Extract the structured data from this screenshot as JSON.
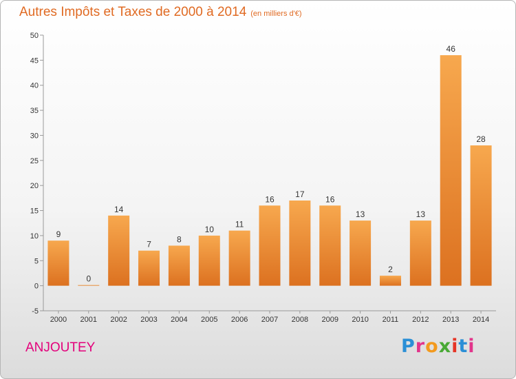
{
  "header": {
    "title": "Autres Impôts et Taxes de 2000 à 2014",
    "unit": "(en milliers d'€)"
  },
  "footer": {
    "commune": "ANJOUTEY",
    "logo_letters": [
      "P",
      "r",
      "o",
      "x",
      "i",
      "t",
      "i"
    ],
    "logo_colors": [
      "#2a8fd6",
      "#e2358b",
      "#f39a1e",
      "#49a935",
      "#e63526",
      "#2a8fd6",
      "#e2358b"
    ]
  },
  "colors": {
    "title": "#e06a22",
    "commune": "#e3007b",
    "bar_top": "#f7a84e",
    "bar_bottom": "#dc7120"
  },
  "chart_data": {
    "type": "bar",
    "categories": [
      "2000",
      "2001",
      "2002",
      "2003",
      "2004",
      "2005",
      "2006",
      "2007",
      "2008",
      "2009",
      "2010",
      "2011",
      "2012",
      "2013",
      "2014"
    ],
    "values": [
      9,
      0,
      14,
      7,
      8,
      10,
      11,
      16,
      17,
      16,
      13,
      2,
      13,
      46,
      28
    ],
    "title": "Autres Impôts et Taxes de 2000 à 2014",
    "ylabel": "(en milliers d'€)",
    "ylim": [
      -5,
      50
    ],
    "yticks": [
      -5,
      0,
      5,
      10,
      15,
      20,
      25,
      30,
      35,
      40,
      45,
      50
    ],
    "grid": false,
    "legend": "none"
  }
}
